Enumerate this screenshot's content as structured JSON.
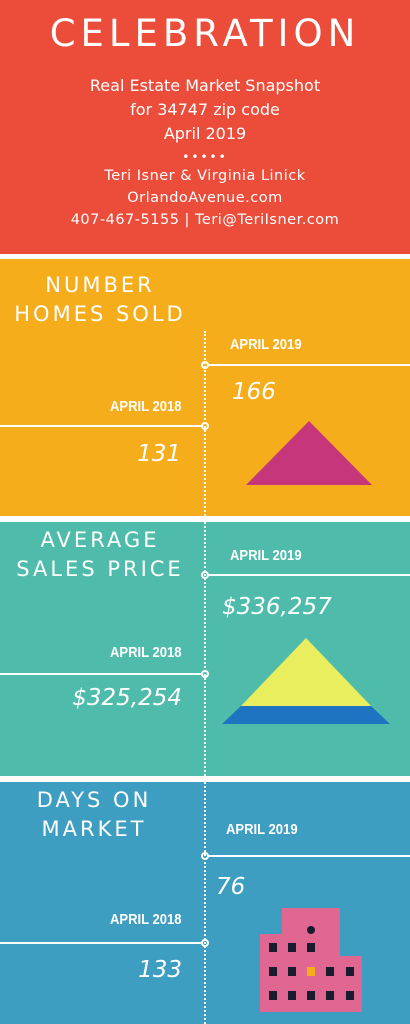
{
  "header": {
    "title": "CELEBRATION",
    "subtitle_line1": "Real Estate Market Snapshot",
    "subtitle_line2": "for 34747 zip code",
    "subtitle_line3": "April 2019",
    "dots": "•••••",
    "agents": "Teri Isner & Virginia Linick",
    "website": "OrlandoAvenue.com",
    "contact": "407-467-5155 | Teri@TeriIsner.com"
  },
  "sections": [
    {
      "title_line1": "NUMBER",
      "title_line2": "HOMES SOLD",
      "label_2019": "APRIL 2019",
      "value_2019": "166",
      "label_2018": "APRIL 2018",
      "value_2018": "131",
      "color": "#f6ad1c"
    },
    {
      "title_line1": "AVERAGE",
      "title_line2": "SALES PRICE",
      "label_2019": "APRIL 2019",
      "value_2019": "$336,257",
      "label_2018": "APRIL 2018",
      "value_2018": "$325,254",
      "color": "#4fbcab"
    },
    {
      "title_line1": "DAYS ON",
      "title_line2": "MARKET",
      "label_2019": "APRIL 2019",
      "value_2019": "76",
      "label_2018": "APRIL 2018",
      "value_2018": "133",
      "color": "#3e9ec2"
    }
  ],
  "icons": {
    "section1": "triangle-icon",
    "section2": "pyramid-icon",
    "section3": "building-icon"
  },
  "colors": {
    "header": "#ec4d3b",
    "triangle": "#c6367a",
    "pyramid_top": "#e8ee5e",
    "pyramid_base": "#1f74c2",
    "building": "#e16793"
  }
}
